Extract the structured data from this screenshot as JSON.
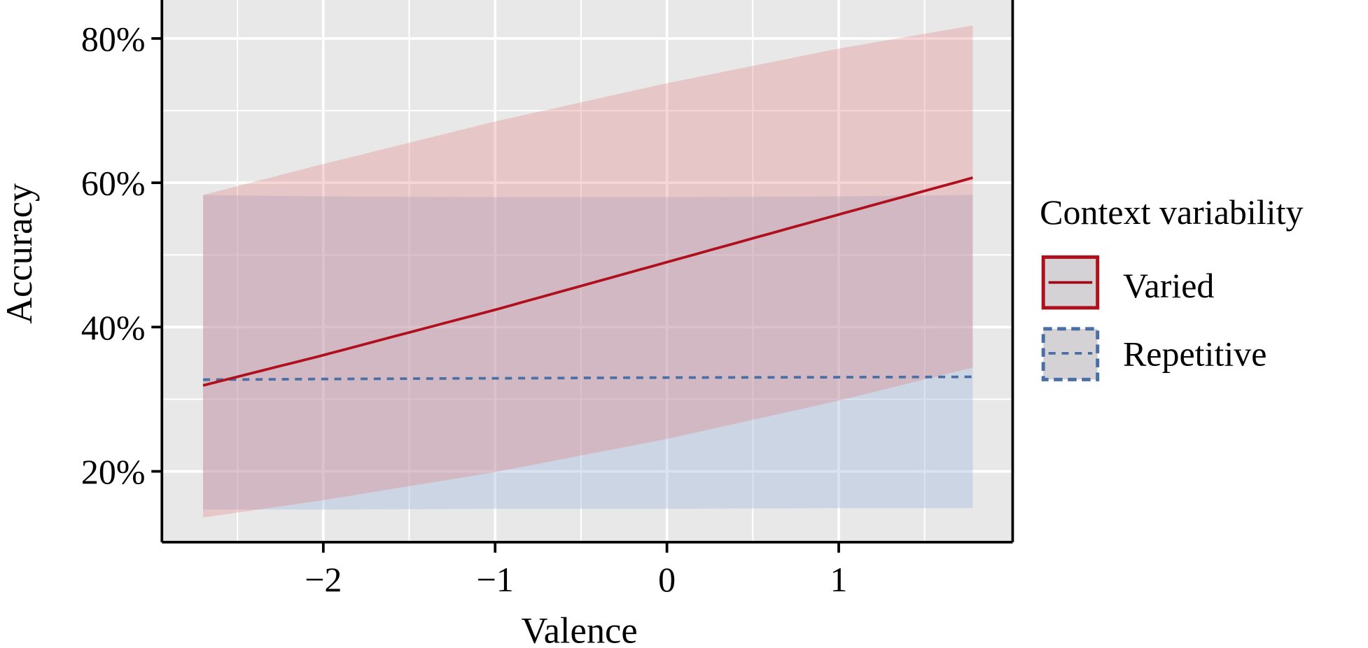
{
  "chart_data": {
    "type": "line",
    "title": "",
    "xlabel": "Valence",
    "ylabel": "Accuracy",
    "xlim": [
      -2.95,
      2.0
    ],
    "ylim": [
      10,
      85
    ],
    "xticks": [
      -2,
      -1,
      0,
      1
    ],
    "xtick_labels": [
      "−2",
      "−1",
      "0",
      "1"
    ],
    "yticks": [
      20,
      40,
      60,
      80
    ],
    "ytick_labels": [
      "20%",
      "40%",
      "60%",
      "80%"
    ],
    "grid": true,
    "legend": {
      "title": "Context variability",
      "placement": "right"
    },
    "x": [
      -2.7,
      -2,
      -1,
      0,
      1,
      1.78
    ],
    "series": [
      {
        "name": "Varied",
        "color": "#b0101e",
        "line_style": "solid",
        "values": [
          31.9,
          36.1,
          42.4,
          49.0,
          55.6,
          60.7
        ],
        "ci_upper": [
          58.3,
          62.6,
          68.5,
          73.8,
          78.6,
          81.8
        ],
        "ci_lower": [
          13.6,
          16.0,
          19.9,
          24.5,
          29.8,
          34.4
        ]
      },
      {
        "name": "Repetitive",
        "color": "#4a6fa5",
        "line_style": "dashed",
        "values": [
          32.7,
          32.8,
          32.9,
          33.0,
          33.05,
          33.1
        ],
        "ci_upper": [
          58.3,
          58.1,
          58.0,
          58.0,
          58.1,
          58.3
        ],
        "ci_lower": [
          14.7,
          14.7,
          14.8,
          14.8,
          14.9,
          14.9
        ]
      }
    ]
  }
}
